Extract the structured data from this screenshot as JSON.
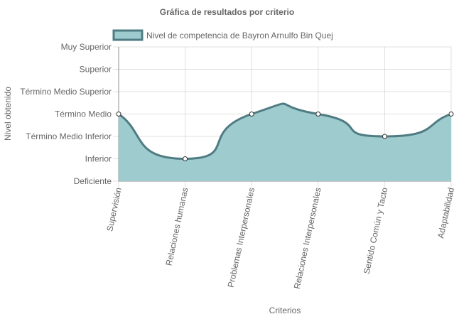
{
  "chart_data": {
    "type": "area",
    "title": "Gráfica de resultados por criterio",
    "xlabel": "Criterios",
    "ylabel": "Nivel obtenido",
    "categories": [
      "Supervisión",
      "Relaciones humanas",
      "Problemas Interpersonales",
      "Relaciones Interpersonales",
      "Sentido Común y Tacto",
      "Adaptabilidad"
    ],
    "y_levels": [
      "Deficiente",
      "Inferior",
      "Término Medio Inferior",
      "Término Medio",
      "Término Medio Superior",
      "Superior",
      "Muy Superior"
    ],
    "ylim": [
      0,
      6
    ],
    "grid": true,
    "legend_position": "top",
    "series": [
      {
        "name": "Nivel de competencia de Bayron Arnulfo Bin Quej",
        "values": [
          3,
          1,
          3,
          3,
          2,
          3
        ],
        "fill_color": "#9ecbce",
        "line_color": "#4f7c83",
        "point_fill": "#ffffff"
      }
    ]
  }
}
